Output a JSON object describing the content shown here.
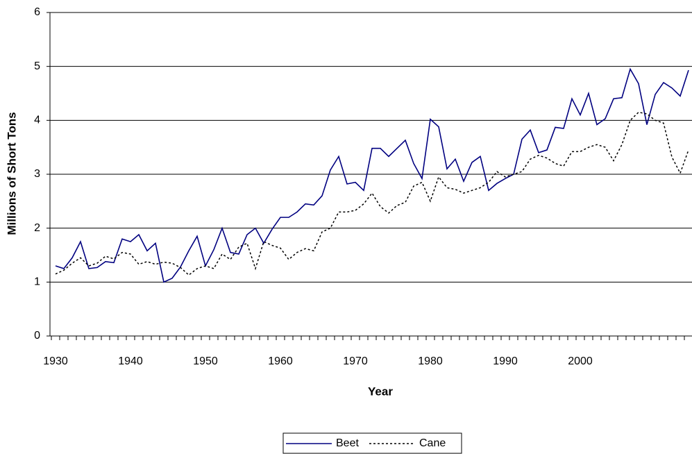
{
  "chart_data": {
    "type": "line",
    "y_label": "Millions of Short Tons",
    "x_label": "Year",
    "categories": [
      "1930",
      null,
      null,
      null,
      null,
      null,
      null,
      null,
      null,
      "1940",
      null,
      null,
      null,
      null,
      null,
      null,
      null,
      null,
      "1950",
      null,
      null,
      null,
      null,
      null,
      null,
      null,
      null,
      "1960",
      null,
      null,
      null,
      null,
      null,
      null,
      null,
      null,
      "1970",
      null,
      null,
      null,
      null,
      null,
      null,
      null,
      null,
      "1980",
      null,
      null,
      null,
      null,
      null,
      null,
      null,
      null,
      "1990",
      null,
      null,
      null,
      null,
      null,
      null,
      null,
      null,
      "2000",
      null,
      null,
      null,
      null,
      null,
      null,
      null,
      null,
      null,
      null,
      null,
      null,
      null
    ],
    "series": [
      {
        "name": "Beet",
        "color": "#000080",
        "line_style": "solid",
        "values": [
          1.3,
          1.25,
          1.45,
          1.75,
          1.25,
          1.27,
          1.38,
          1.36,
          1.8,
          1.75,
          1.88,
          1.58,
          1.72,
          1.0,
          1.07,
          1.28,
          1.58,
          1.85,
          1.3,
          1.6,
          2.0,
          1.55,
          1.52,
          1.88,
          2.0,
          1.72,
          1.98,
          2.2,
          2.2,
          2.3,
          2.45,
          2.43,
          2.6,
          3.08,
          3.33,
          2.82,
          2.85,
          2.7,
          3.48,
          3.48,
          3.33,
          3.48,
          3.63,
          3.2,
          2.92,
          4.02,
          3.88,
          3.1,
          3.28,
          2.87,
          3.22,
          3.33,
          2.7,
          2.83,
          2.92,
          3.0,
          3.65,
          3.82,
          3.4,
          3.45,
          3.87,
          3.85,
          4.4,
          4.1,
          4.5,
          3.92,
          4.03,
          4.4,
          4.42,
          4.95,
          4.68,
          3.92,
          4.48,
          4.7,
          4.6,
          4.45,
          4.93
        ]
      },
      {
        "name": "Cane",
        "color": "#000000",
        "line_style": "dotted",
        "values": [
          1.15,
          1.22,
          1.35,
          1.45,
          1.3,
          1.35,
          1.48,
          1.43,
          1.55,
          1.52,
          1.33,
          1.38,
          1.33,
          1.37,
          1.35,
          1.27,
          1.13,
          1.25,
          1.3,
          1.25,
          1.52,
          1.42,
          1.65,
          1.72,
          1.25,
          1.75,
          1.68,
          1.63,
          1.42,
          1.55,
          1.62,
          1.58,
          1.93,
          2.0,
          2.3,
          2.3,
          2.33,
          2.45,
          2.65,
          2.4,
          2.28,
          2.42,
          2.48,
          2.78,
          2.85,
          2.5,
          2.95,
          2.75,
          2.72,
          2.65,
          2.7,
          2.75,
          2.85,
          3.05,
          2.95,
          3.0,
          3.05,
          3.28,
          3.35,
          3.3,
          3.2,
          3.15,
          3.42,
          3.42,
          3.5,
          3.55,
          3.5,
          3.25,
          3.55,
          4.0,
          4.15,
          4.12,
          4.0,
          3.95,
          3.32,
          3.02,
          3.45
        ]
      }
    ],
    "ylim": [
      0,
      6
    ],
    "yticks": [
      0,
      1,
      2,
      3,
      4,
      5,
      6
    ],
    "grid": true,
    "legend": "bottom"
  }
}
